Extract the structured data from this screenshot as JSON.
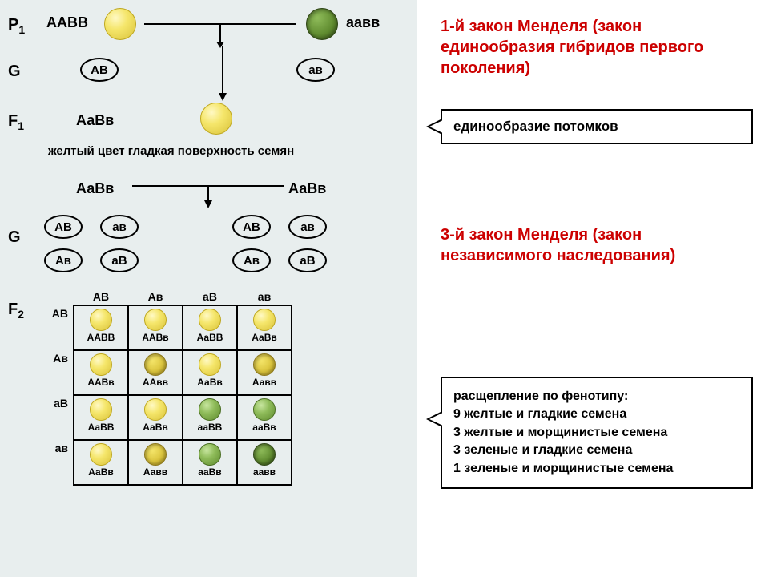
{
  "colors": {
    "bg_left": "#e8eeee",
    "bg_right": "#ffffff",
    "law_title": "#cc0000",
    "text": "#000000",
    "border": "#000000"
  },
  "labels": {
    "P1": "P",
    "P1_sub": "1",
    "G": "G",
    "F1": "F",
    "F1_sub": "1",
    "F2": "F",
    "F2_sub": "2"
  },
  "p1": {
    "left_geno": "ААВВ",
    "right_geno": "аавв"
  },
  "gametes_p": {
    "left": "АВ",
    "right": "ав"
  },
  "f1": {
    "geno": "АаВв",
    "desc": "желтый цвет гладкая поверхность семян"
  },
  "f1_cross": {
    "left": "АаВв",
    "right": "АаВв"
  },
  "gametes_f1": [
    "АВ",
    "ав",
    "Ав",
    "аВ"
  ],
  "gametes_f1_right": [
    "АВ",
    "ав",
    "Ав",
    "аВ"
  ],
  "punnett": {
    "col_headers": [
      "АВ",
      "Ав",
      "аВ",
      "ав"
    ],
    "row_headers": [
      "АВ",
      "Ав",
      "аВ",
      "ав"
    ],
    "rows": [
      [
        {
          "geno": "ААВВ",
          "pheno": "yellow-smooth"
        },
        {
          "geno": "ААВв",
          "pheno": "yellow-smooth"
        },
        {
          "geno": "АаВВ",
          "pheno": "yellow-smooth"
        },
        {
          "geno": "АаВв",
          "pheno": "yellow-smooth"
        }
      ],
      [
        {
          "geno": "ААВв",
          "pheno": "yellow-smooth"
        },
        {
          "geno": "ААвв",
          "pheno": "yellow-wrinkled"
        },
        {
          "geno": "АаВв",
          "pheno": "yellow-smooth"
        },
        {
          "geno": "Аавв",
          "pheno": "yellow-wrinkled"
        }
      ],
      [
        {
          "geno": "АаВВ",
          "pheno": "yellow-smooth"
        },
        {
          "geno": "АаВв",
          "pheno": "yellow-smooth"
        },
        {
          "geno": "ааВВ",
          "pheno": "green-smooth"
        },
        {
          "geno": "ааВв",
          "pheno": "green-smooth"
        }
      ],
      [
        {
          "geno": "АаВв",
          "pheno": "yellow-smooth"
        },
        {
          "geno": "Аавв",
          "pheno": "yellow-wrinkled"
        },
        {
          "geno": "ааВв",
          "pheno": "green-smooth"
        },
        {
          "geno": "аавв",
          "pheno": "green-wrinkled"
        }
      ]
    ]
  },
  "law1": {
    "title": "1-й закон Менделя (закон единообразия гибридов первого поколения)",
    "note": "единообразие потомков"
  },
  "law3": {
    "title": "3-й закон Менделя (закон независимого наследования)",
    "pheno_header": "расщепление по фенотипу:",
    "pheno_lines": [
      "9 желтые и гладкие семена",
      "3 желтые и морщинистые семена",
      "3 зеленые и гладкие семена",
      "1 зеленые и морщинистые семена"
    ]
  }
}
